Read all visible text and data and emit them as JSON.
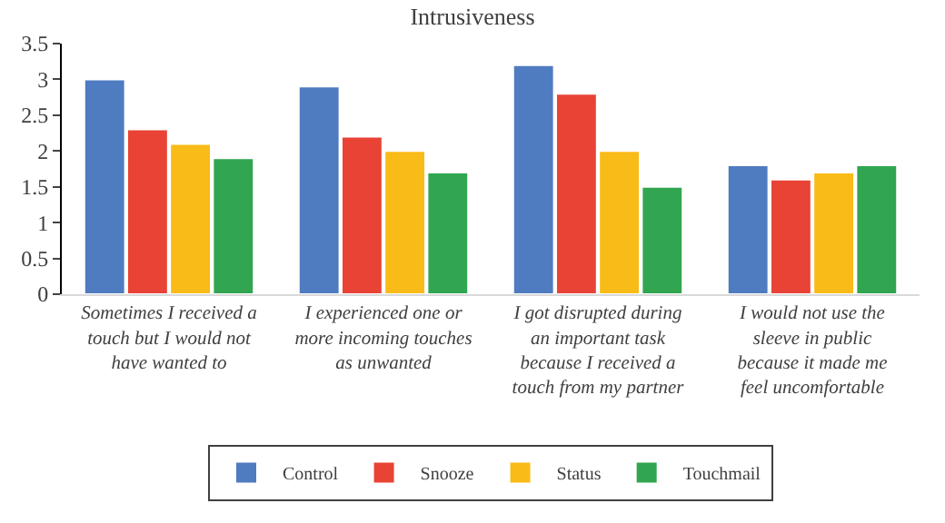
{
  "chart_data": {
    "type": "bar",
    "title": "Intrusiveness",
    "categories": [
      "Sometimes I received a touch but I would not have wanted to",
      "I experienced one or more incoming touches as unwanted",
      "I got disrupted during an important task because I received a touch from my partner",
      "I would not use the sleeve in public because it made me feel uncomfortable"
    ],
    "series": [
      {
        "name": "Control",
        "color": "#4f7bc0",
        "values": [
          3.0,
          2.9,
          3.2,
          1.8
        ]
      },
      {
        "name": "Snooze",
        "color": "#e84335",
        "values": [
          2.3,
          2.2,
          2.8,
          1.6
        ]
      },
      {
        "name": "Status",
        "color": "#f9bb17",
        "values": [
          2.1,
          2.0,
          2.0,
          1.7
        ]
      },
      {
        "name": "Touchmail",
        "color": "#31a550",
        "values": [
          1.9,
          1.7,
          1.5,
          1.8
        ]
      }
    ],
    "ylim": [
      0,
      3.5
    ],
    "yticks": [
      0,
      0.5,
      1,
      1.5,
      2,
      2.5,
      3,
      3.5
    ],
    "grid": false,
    "legend": "bottom"
  }
}
